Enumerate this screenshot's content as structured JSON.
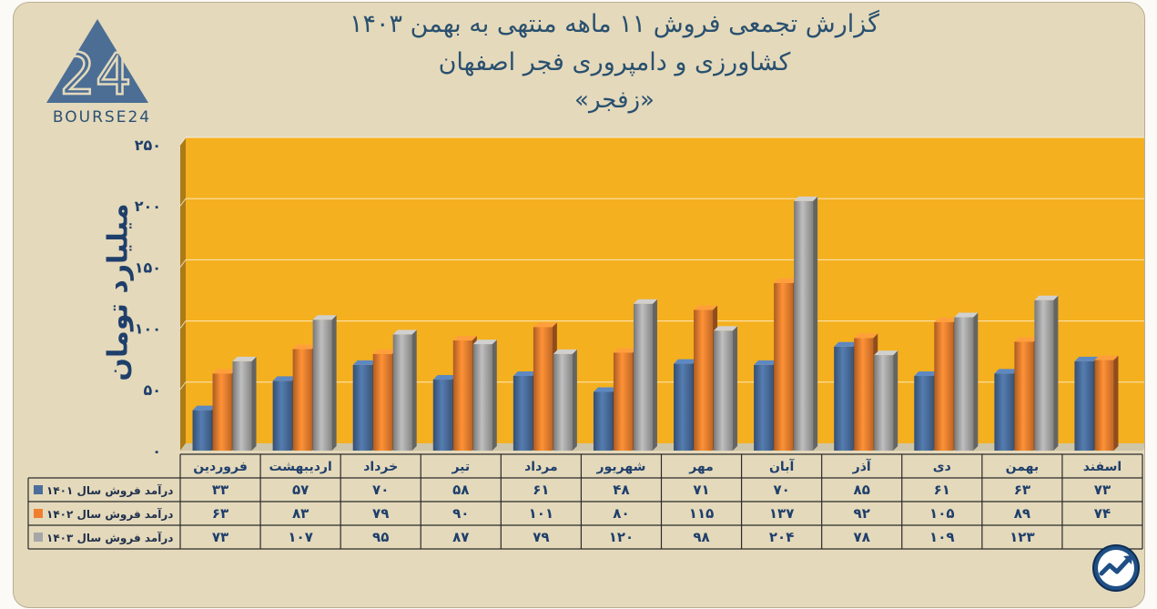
{
  "titles": [
    "گزارش تجمعی فروش ۱۱ ماهه منتهی به بهمن ۱۴۰۳",
    "کشاورزی و دامپروری فجر اصفهان",
    "«زفجر»"
  ],
  "logo": {
    "text": "BOURSE24",
    "mark": "24"
  },
  "corner_logo": "trend-arrow-icon",
  "colors": {
    "s1401": "#4a6d9b",
    "s1402": "#ef7f2f",
    "s1403": "#a6a6a6",
    "plot_bg": "#f4b01f",
    "frame_bg": "#e4d9bb",
    "title": "#29506f"
  },
  "chart_data": {
    "type": "bar",
    "categories": [
      "فروردین",
      "اردیبهشت",
      "خرداد",
      "تیر",
      "مرداد",
      "شهریور",
      "مهر",
      "آبان",
      "آذر",
      "دی",
      "بهمن",
      "اسفند"
    ],
    "series": [
      {
        "name": "درآمد فروش سال ۱۴۰۱",
        "values": [
          33,
          57,
          70,
          58,
          61,
          48,
          71,
          70,
          85,
          61,
          63,
          73
        ],
        "labels": [
          "۳۳",
          "۵۷",
          "۷۰",
          "۵۸",
          "۶۱",
          "۴۸",
          "۷۱",
          "۷۰",
          "۸۵",
          "۶۱",
          "۶۳",
          "۷۳"
        ]
      },
      {
        "name": "درآمد فروش سال ۱۴۰۲",
        "values": [
          63,
          83,
          79,
          90,
          101,
          80,
          115,
          137,
          92,
          105,
          89,
          74
        ],
        "labels": [
          "۶۳",
          "۸۳",
          "۷۹",
          "۹۰",
          "۱۰۱",
          "۸۰",
          "۱۱۵",
          "۱۳۷",
          "۹۲",
          "۱۰۵",
          "۸۹",
          "۷۴"
        ]
      },
      {
        "name": "درآمد فروش سال ۱۴۰۳",
        "values": [
          73,
          107,
          95,
          87,
          79,
          120,
          98,
          204,
          78,
          109,
          123,
          null
        ],
        "labels": [
          "۷۳",
          "۱۰۷",
          "۹۵",
          "۸۷",
          "۷۹",
          "۱۲۰",
          "۹۸",
          "۲۰۴",
          "۷۸",
          "۱۰۹",
          "۱۲۳",
          ""
        ]
      }
    ],
    "ylabel": "میلیارد تومان",
    "ylim": [
      0,
      250
    ],
    "yticks": [
      0,
      50,
      100,
      150,
      200,
      250
    ],
    "ytick_labels": [
      "۰",
      "۵۰",
      "۱۰۰",
      "۱۵۰",
      "۲۰۰",
      "۲۵۰"
    ],
    "grid": true,
    "legend": "data-table"
  }
}
